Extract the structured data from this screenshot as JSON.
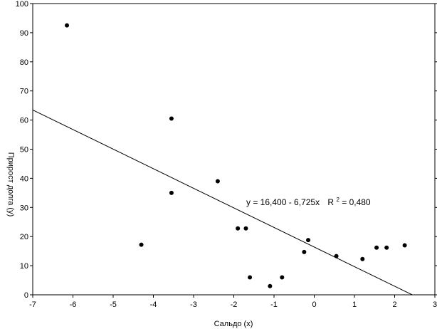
{
  "chart_data": {
    "type": "scatter",
    "xlabel": "Сальдо (x)",
    "ylabel": "Прирост долга (y)",
    "xlim": [
      -7,
      3
    ],
    "ylim": [
      0,
      100
    ],
    "xticks": [
      -7,
      -6,
      -5,
      -4,
      -3,
      -2,
      -1,
      0,
      1,
      2,
      3
    ],
    "yticks": [
      0,
      10,
      20,
      30,
      40,
      50,
      60,
      70,
      80,
      90,
      100
    ],
    "points": [
      {
        "x": -6.15,
        "y": 92.5
      },
      {
        "x": -4.3,
        "y": 17.2
      },
      {
        "x": -3.55,
        "y": 60.5
      },
      {
        "x": -3.55,
        "y": 35.0
      },
      {
        "x": -2.4,
        "y": 39.0
      },
      {
        "x": -1.9,
        "y": 22.8
      },
      {
        "x": -1.7,
        "y": 22.8
      },
      {
        "x": -1.6,
        "y": 6.0
      },
      {
        "x": -1.1,
        "y": 3.0
      },
      {
        "x": -0.8,
        "y": 6.0
      },
      {
        "x": -0.25,
        "y": 14.7
      },
      {
        "x": -0.15,
        "y": 18.8
      },
      {
        "x": 0.55,
        "y": 13.3
      },
      {
        "x": 1.2,
        "y": 12.3
      },
      {
        "x": 1.55,
        "y": 16.2
      },
      {
        "x": 1.8,
        "y": 16.2
      },
      {
        "x": 2.25,
        "y": 17.0
      }
    ],
    "regression": {
      "intercept": 16.4,
      "slope": -6.725
    },
    "equation_text": "y = 16,400 - 6,725x",
    "r2_label": "R",
    "r2_sup": "2",
    "r2_value": " = 0,480",
    "grid": false
  }
}
